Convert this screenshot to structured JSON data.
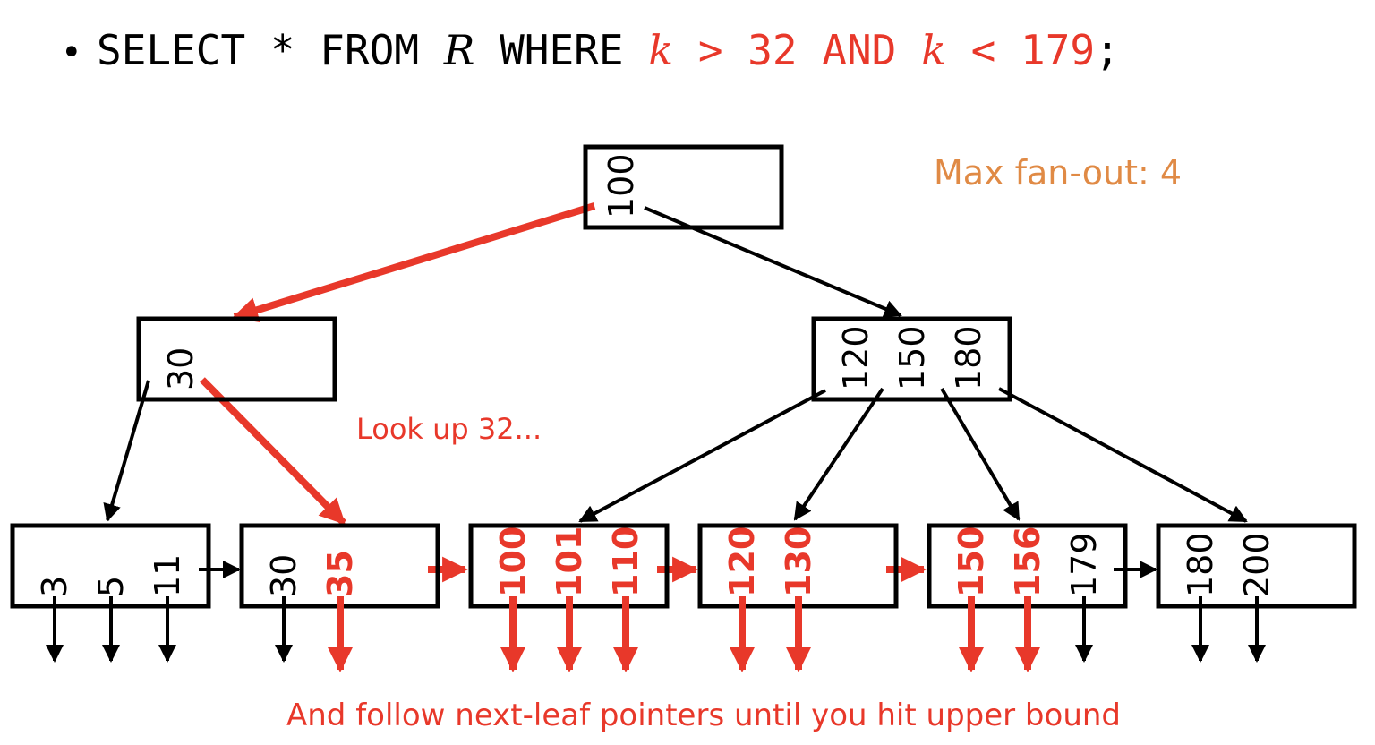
{
  "query": {
    "bullet": "•",
    "tokens": [
      {
        "text": "SELECT * FROM ",
        "style": "plain"
      },
      {
        "text": "R",
        "style": "italic"
      },
      {
        "text": " WHERE ",
        "style": "plain"
      },
      {
        "text": "k",
        "style": "italic-red"
      },
      {
        "text": " > 32 AND ",
        "style": "red"
      },
      {
        "text": "k",
        "style": "italic-red"
      },
      {
        "text": " < 179",
        "style": "red"
      },
      {
        "text": ";",
        "style": "plain"
      }
    ]
  },
  "labels": {
    "fanout": "Max fan-out: 4",
    "lookup": "Look up 32...",
    "follow": "And follow next-leaf pointers until you hit upper bound"
  },
  "colors": {
    "black": "#000000",
    "red": "#e8382a",
    "orange": "#e08a45"
  },
  "tree": {
    "root": {
      "keys": [
        "100"
      ]
    },
    "internal": [
      {
        "keys": [
          "30"
        ]
      },
      {
        "keys": [
          "120",
          "150",
          "180"
        ]
      }
    ],
    "leaves": [
      {
        "keys": [
          {
            "v": "3",
            "hit": false
          },
          {
            "v": "5",
            "hit": false
          },
          {
            "v": "11",
            "hit": false
          }
        ]
      },
      {
        "keys": [
          {
            "v": "30",
            "hit": false
          },
          {
            "v": "35",
            "hit": true
          }
        ]
      },
      {
        "keys": [
          {
            "v": "100",
            "hit": true
          },
          {
            "v": "101",
            "hit": true
          },
          {
            "v": "110",
            "hit": true
          }
        ]
      },
      {
        "keys": [
          {
            "v": "120",
            "hit": true
          },
          {
            "v": "130",
            "hit": true
          }
        ]
      },
      {
        "keys": [
          {
            "v": "150",
            "hit": true
          },
          {
            "v": "156",
            "hit": true
          },
          {
            "v": "179",
            "hit": false
          }
        ]
      },
      {
        "keys": [
          {
            "v": "180",
            "hit": false
          },
          {
            "v": "200",
            "hit": false
          }
        ]
      }
    ]
  }
}
